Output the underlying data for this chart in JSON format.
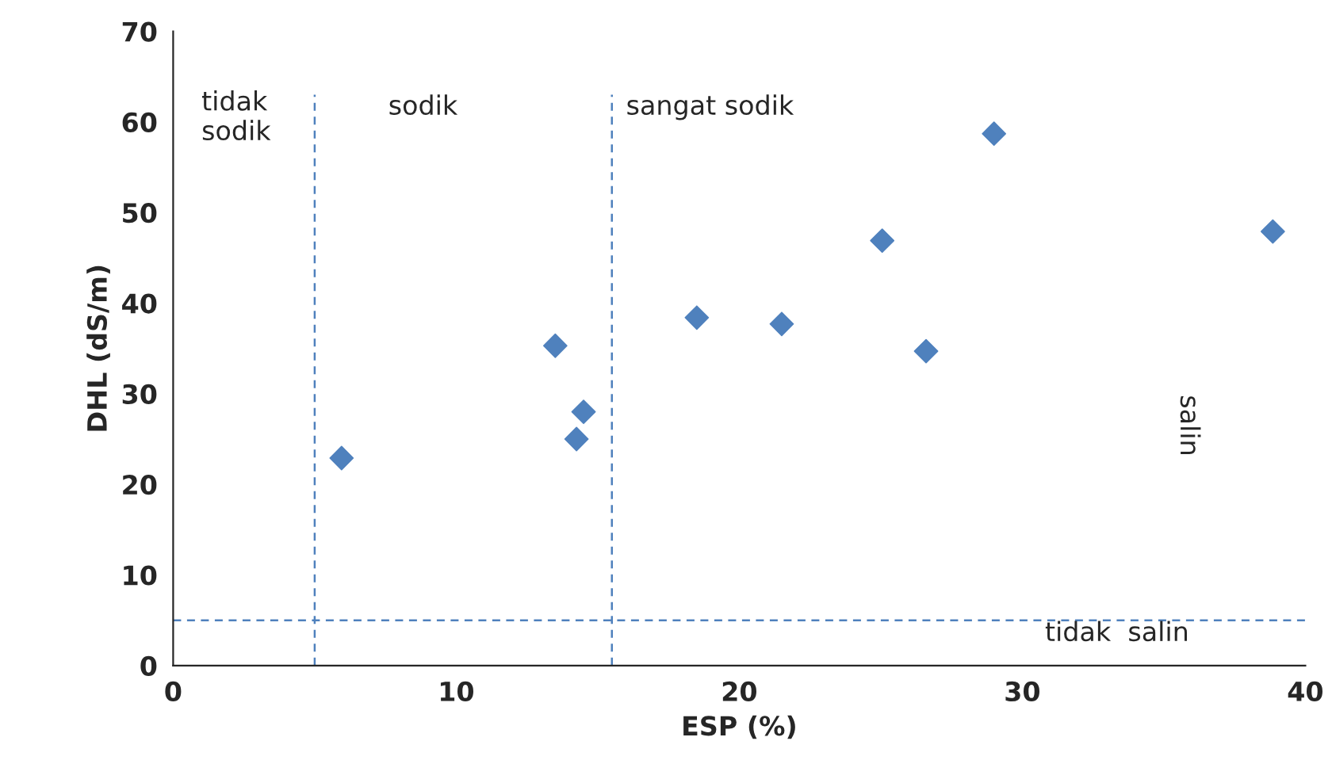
{
  "chart_data": {
    "type": "scatter",
    "xlabel": "ESP (%)",
    "ylabel": "DHL (dS/m)",
    "x": [
      5.95,
      13.5,
      14.25,
      14.5,
      18.5,
      21.5,
      25.05,
      26.6,
      29.0,
      38.85
    ],
    "values": [
      22.9,
      35.3,
      25.0,
      28.0,
      38.4,
      37.7,
      46.9,
      34.7,
      58.7,
      47.9
    ],
    "color": "#4f81bd",
    "marker": "diamond",
    "grid": false,
    "xlim": [
      0,
      40
    ],
    "xticks": [
      0,
      10,
      20,
      30,
      40
    ],
    "ylim": [
      0,
      70
    ],
    "yticks": [
      0,
      10,
      20,
      30,
      40,
      50,
      60,
      70
    ],
    "ref_lines": [
      {
        "axis": "x",
        "value": 5.0,
        "color": "#4f81bd",
        "line_style": "dashed"
      },
      {
        "axis": "x",
        "value": 15.5,
        "color": "#4f81bd",
        "line_style": "dashed"
      },
      {
        "axis": "y",
        "value": 5.0,
        "color": "#4f81bd",
        "line_style": "dashed"
      }
    ],
    "annotations": [
      "tidak\nsodik",
      "sodik",
      "sangat sodik",
      "tidak  salin",
      "salin"
    ]
  }
}
